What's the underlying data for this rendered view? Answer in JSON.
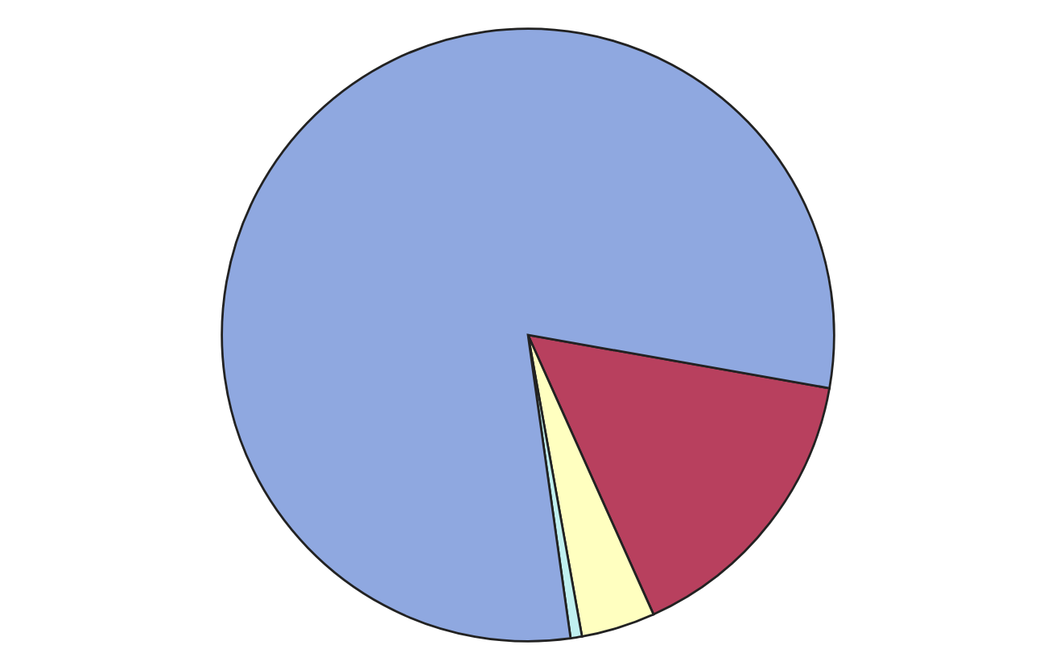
{
  "chart_data": {
    "type": "pie",
    "categories": [
      null,
      null,
      null,
      null
    ],
    "values": [
      15.5,
      3.9,
      0.6,
      80.0
    ],
    "colors": [
      "#b8405e",
      "#ffffc0",
      "#c0f0f0",
      "#8fa8e0"
    ]
  }
}
